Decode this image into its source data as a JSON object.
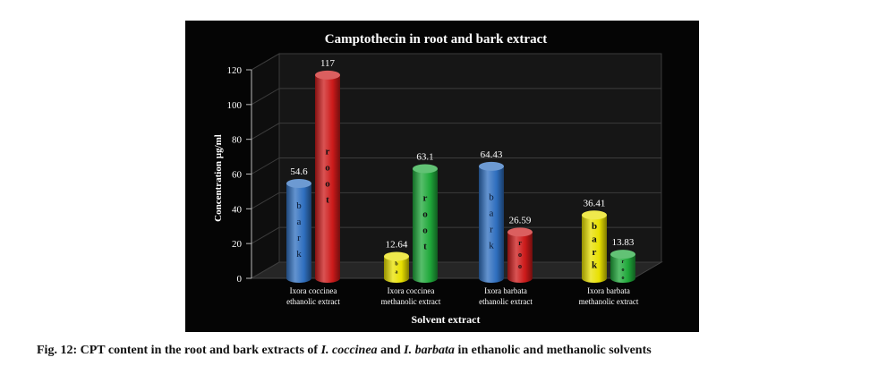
{
  "chart_data": {
    "type": "bar",
    "title": "Camptothecin in root and bark extract",
    "xlabel": "Solvent extract",
    "ylabel": "Concentration  µg/ml",
    "ylim": [
      0,
      120
    ],
    "yticks": [
      "0",
      "20",
      "40",
      "60",
      "80",
      "100",
      "120"
    ],
    "categories": [
      [
        "Ixora coccinea",
        "ethanolic extract"
      ],
      [
        "Ixora coccinea",
        "methanolic extract"
      ],
      [
        "Ixora barbata",
        "ethanolic extract"
      ],
      [
        "Ixora barbata",
        "methanolic extract"
      ]
    ],
    "grid": true,
    "bars": [
      {
        "group": 0,
        "slot": 0,
        "value": 54.6,
        "label": "54.6",
        "tag": "bark",
        "color": "#2f6fbf"
      },
      {
        "group": 0,
        "slot": 1,
        "value": 117,
        "label": "117",
        "tag": "root",
        "color": "#cc1a1a"
      },
      {
        "group": 1,
        "slot": 0,
        "value": 12.64,
        "label": "12.64",
        "tag": "ba",
        "color": "#e8e000"
      },
      {
        "group": 1,
        "slot": 1,
        "value": 63.1,
        "label": "63.1",
        "tag": "root",
        "color": "#1fa83a"
      },
      {
        "group": 2,
        "slot": 0,
        "value": 64.43,
        "label": "64.43",
        "tag": "bark",
        "color": "#2f6fbf"
      },
      {
        "group": 2,
        "slot": 1,
        "value": 26.59,
        "label": "26.59",
        "tag": "roo",
        "color": "#cc1a1a"
      },
      {
        "group": 3,
        "slot": 0,
        "value": 36.41,
        "label": "36.41",
        "tag": "bark",
        "color": "#e8e000"
      },
      {
        "group": 3,
        "slot": 1,
        "value": 13.83,
        "label": "13.83",
        "tag": "roo",
        "color": "#1fa83a"
      }
    ]
  },
  "caption": {
    "prefix": "Fig. 12: CPT content in the root and bark extracts of ",
    "species1": "I. coccinea",
    "and": " and ",
    "species2": "I. barbata",
    "suffix": " in ethanolic and methanolic solvents"
  }
}
